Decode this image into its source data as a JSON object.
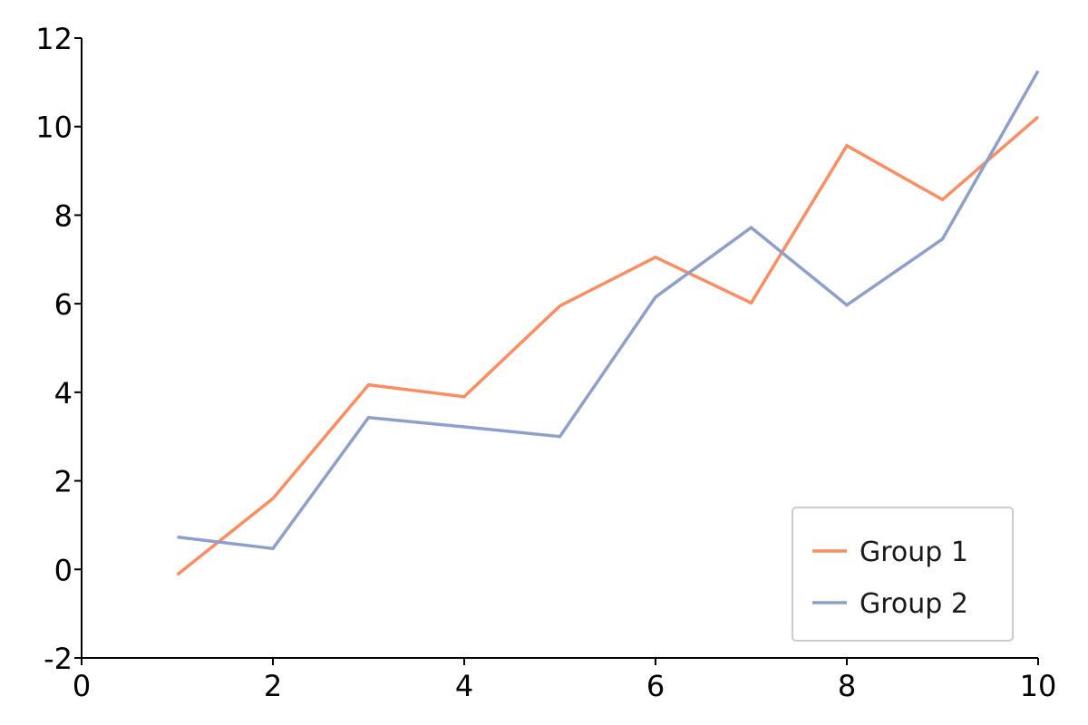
{
  "chart_data": {
    "type": "line",
    "title": "",
    "xlabel": "",
    "ylabel": "",
    "xlim": [
      0,
      10
    ],
    "ylim": [
      -2,
      12
    ],
    "x_ticks": [
      0,
      2,
      4,
      6,
      8,
      10
    ],
    "y_ticks": [
      -2,
      0,
      2,
      4,
      6,
      8,
      10,
      12
    ],
    "grid": false,
    "legend_position": "bottom-right",
    "series": [
      {
        "name": "Group 1",
        "color": "#fc8d62",
        "x": [
          1,
          2,
          3,
          4,
          5,
          6,
          7,
          8,
          9,
          10
        ],
        "y": [
          -0.12,
          1.6,
          4.17,
          3.9,
          5.95,
          7.05,
          6.02,
          9.57,
          8.35,
          10.22
        ]
      },
      {
        "name": "Group 2",
        "color": "#8da0cb",
        "x": [
          1,
          2,
          3,
          4,
          5,
          6,
          7,
          8,
          9,
          10
        ],
        "y": [
          0.73,
          0.47,
          3.43,
          3.22,
          3.0,
          6.15,
          7.72,
          5.97,
          7.46,
          11.26
        ]
      }
    ]
  }
}
